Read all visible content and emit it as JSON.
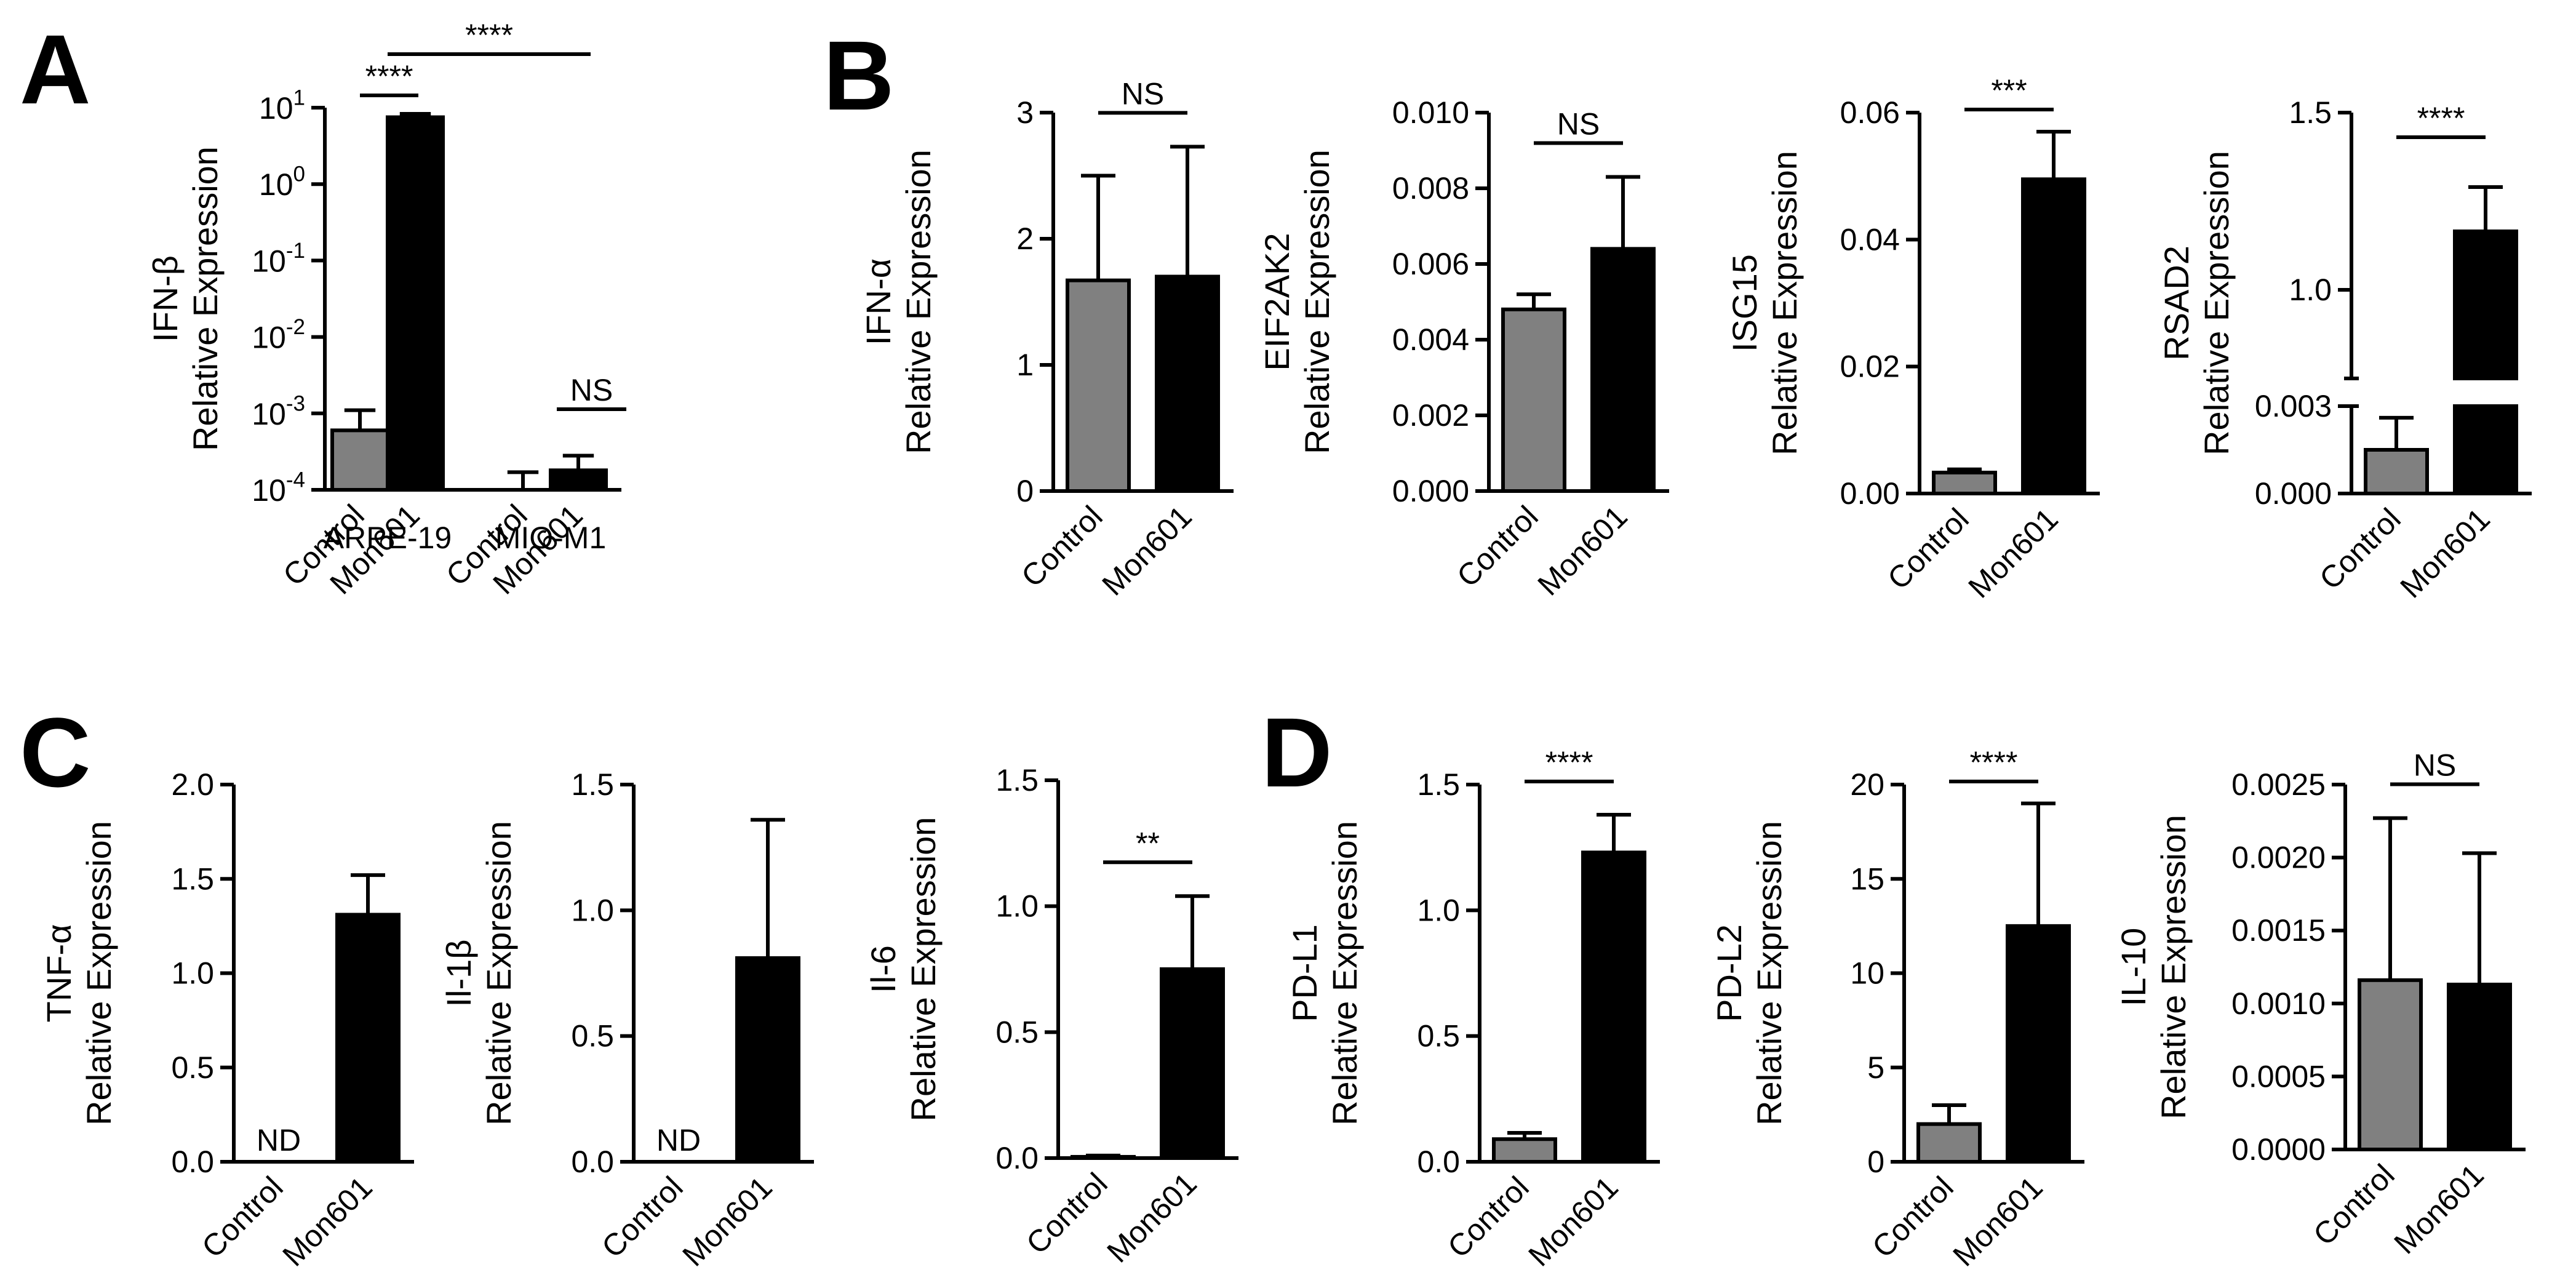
{
  "colors": {
    "control": "#808080",
    "mon601": "#000000"
  },
  "panels": [
    {
      "id": "A",
      "label": "A"
    },
    {
      "id": "B",
      "label": "B"
    },
    {
      "id": "C",
      "label": "C"
    },
    {
      "id": "D",
      "label": "D"
    }
  ],
  "chart_data": [
    {
      "panel": "A",
      "type": "bar",
      "yscale": "log",
      "ylabel": [
        "IFN-β",
        "Relative Expression"
      ],
      "ylim": [
        0.0001,
        10
      ],
      "yticks": [
        "10^-4",
        "10^-3",
        "10^-2",
        "10^-1",
        "10^0",
        "10^1"
      ],
      "groups": [
        "ARPE-19",
        "MIO-M1"
      ],
      "categories": [
        "Control",
        "Mon601",
        "Control",
        "Mon601"
      ],
      "values": [
        0.0006,
        7.5,
        0.0001,
        0.00018
      ],
      "errors": [
        0.0011,
        8.3,
        0.00017,
        0.00028
      ],
      "bar_colors": [
        "control",
        "mon601",
        "control",
        "mon601"
      ],
      "annotations": [
        {
          "text": "****",
          "between": [
            0,
            1
          ]
        },
        {
          "text": "****",
          "between": [
            0,
            3
          ]
        },
        {
          "text": "NS",
          "between": [
            2,
            3
          ]
        }
      ]
    },
    {
      "panel": "B",
      "type": "bar",
      "ylabel": [
        "IFN-α",
        "Relative Expression"
      ],
      "ylim": [
        0,
        3
      ],
      "yticks": [
        "0",
        "1",
        "2",
        "3"
      ],
      "categories": [
        "Control",
        "Mon601"
      ],
      "values": [
        1.67,
        1.7
      ],
      "errors": [
        2.5,
        2.73
      ],
      "annotations": [
        {
          "text": "NS",
          "between": [
            0,
            1
          ]
        }
      ]
    },
    {
      "panel": "B",
      "type": "bar",
      "ylabel": [
        "EIF2AK2",
        "Relative Expression"
      ],
      "ylim": [
        0,
        0.01
      ],
      "yticks": [
        "0.000",
        "0.002",
        "0.004",
        "0.006",
        "0.008",
        "0.010"
      ],
      "categories": [
        "Control",
        "Mon601"
      ],
      "values": [
        0.0048,
        0.0064
      ],
      "errors": [
        0.0052,
        0.0083
      ],
      "annotations": [
        {
          "text": "NS",
          "between": [
            0,
            1
          ]
        }
      ]
    },
    {
      "panel": "B",
      "type": "bar",
      "ylabel": [
        "ISG15",
        "Relative Expression"
      ],
      "ylim": [
        0,
        0.06
      ],
      "yticks": [
        "0.00",
        "0.02",
        "0.04",
        "0.06"
      ],
      "categories": [
        "Control",
        "Mon601"
      ],
      "values": [
        0.0033,
        0.0495
      ],
      "errors": [
        0.0038,
        0.057
      ],
      "annotations": [
        {
          "text": "***",
          "between": [
            0,
            1
          ]
        }
      ]
    },
    {
      "panel": "B",
      "type": "bar",
      "broken_axis": true,
      "ylabel": [
        "RSAD2",
        "Relative Expression"
      ],
      "yticks": [
        "0.000",
        "0.003",
        "1.0",
        "1.5"
      ],
      "categories": [
        "Control",
        "Mon601"
      ],
      "values": [
        0.0015,
        1.165
      ],
      "errors": [
        0.0026,
        1.29
      ],
      "annotations": [
        {
          "text": "****",
          "between": [
            0,
            1
          ]
        }
      ]
    },
    {
      "panel": "C",
      "type": "bar",
      "ylabel": [
        "TNF-α",
        "Relative Expression"
      ],
      "ylim": [
        0,
        2
      ],
      "yticks": [
        "0.0",
        "0.5",
        "1.0",
        "1.5",
        "2.0"
      ],
      "categories": [
        "Control",
        "Mon601"
      ],
      "values": [
        0,
        1.31
      ],
      "errors": [
        null,
        1.52
      ],
      "bar_labels": [
        "ND",
        ""
      ],
      "annotations": []
    },
    {
      "panel": "C",
      "type": "bar",
      "ylabel": [
        "Il-1β",
        "Relative Expression"
      ],
      "ylim": [
        0,
        1.5
      ],
      "yticks": [
        "0.0",
        "0.5",
        "1.0",
        "1.5"
      ],
      "categories": [
        "Control",
        "Mon601"
      ],
      "values": [
        0,
        0.81
      ],
      "errors": [
        null,
        1.36
      ],
      "bar_labels": [
        "ND",
        ""
      ],
      "annotations": []
    },
    {
      "panel": "C",
      "type": "bar",
      "ylabel": [
        "Il-6",
        "Relative Expression"
      ],
      "ylim": [
        0,
        1.5
      ],
      "yticks": [
        "0.0",
        "0.5",
        "1.0",
        "1.5"
      ],
      "categories": [
        "Control",
        "Mon601"
      ],
      "values": [
        0.005,
        0.75
      ],
      "errors": [
        0.01,
        1.04
      ],
      "annotations": [
        {
          "text": "**",
          "between": [
            0,
            1
          ]
        }
      ]
    },
    {
      "panel": "D",
      "type": "bar",
      "ylabel": [
        "PD-L1",
        "Relative Expression"
      ],
      "ylim": [
        0,
        1.5
      ],
      "yticks": [
        "0.0",
        "0.5",
        "1.0",
        "1.5"
      ],
      "categories": [
        "Control",
        "Mon601"
      ],
      "values": [
        0.09,
        1.23
      ],
      "errors": [
        0.115,
        1.38
      ],
      "annotations": [
        {
          "text": "****",
          "between": [
            0,
            1
          ]
        }
      ]
    },
    {
      "panel": "D",
      "type": "bar",
      "ylabel": [
        "PD-L2",
        "Relative Expression"
      ],
      "ylim": [
        0,
        20
      ],
      "yticks": [
        "0",
        "5",
        "10",
        "15",
        "20"
      ],
      "categories": [
        "Control",
        "Mon601"
      ],
      "values": [
        2.0,
        12.5
      ],
      "errors": [
        3.0,
        19.0
      ],
      "annotations": [
        {
          "text": "****",
          "between": [
            0,
            1
          ]
        }
      ]
    },
    {
      "panel": "D",
      "type": "bar",
      "ylabel": [
        "IL-10",
        "Relative Expression"
      ],
      "ylim": [
        0,
        0.0025
      ],
      "yticks": [
        "0.0000",
        "0.0005",
        "0.0010",
        "0.0015",
        "0.0020",
        "0.0025"
      ],
      "categories": [
        "Control",
        "Mon601"
      ],
      "values": [
        0.00116,
        0.00113
      ],
      "errors": [
        0.00227,
        0.00203
      ],
      "annotations": [
        {
          "text": "NS",
          "between": [
            0,
            1
          ]
        }
      ]
    }
  ]
}
